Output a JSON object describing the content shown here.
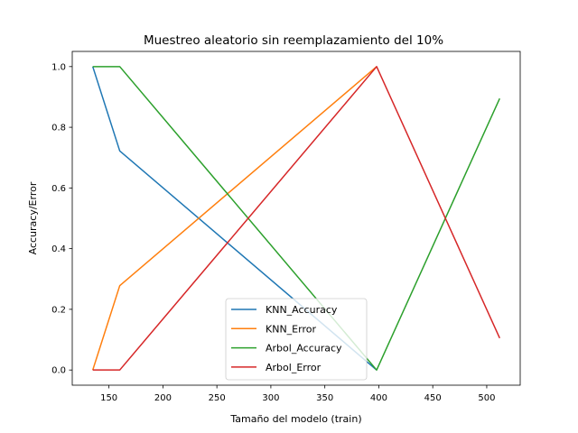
{
  "chart_data": {
    "type": "line",
    "title": "Muestreo aleatorio sin reemplazamiento del 10%",
    "xlabel": "Tamaño del modelo (train)",
    "ylabel": "Accuracy/Error",
    "xlim": [
      116,
      531
    ],
    "ylim": [
      -0.05,
      1.05
    ],
    "xticks": [
      150,
      200,
      250,
      300,
      350,
      400,
      450,
      500
    ],
    "yticks": [
      0.0,
      0.2,
      0.4,
      0.6,
      0.8,
      1.0
    ],
    "xtick_labels": [
      "150",
      "200",
      "250",
      "300",
      "350",
      "400",
      "450",
      "500"
    ],
    "ytick_labels": [
      "0.0",
      "0.2",
      "0.4",
      "0.6",
      "0.8",
      "1.0"
    ],
    "grid": false,
    "legend_position": "lower-center",
    "series": [
      {
        "name": "KNN_Accuracy",
        "color": "#1f77b4",
        "x": [
          135,
          160,
          398,
          398
        ],
        "y": [
          1.0,
          0.722,
          0.0,
          0.0
        ]
      },
      {
        "name": "KNN_Error",
        "color": "#ff7f0e",
        "x": [
          135,
          160,
          398,
          398
        ],
        "y": [
          0.0,
          0.278,
          1.0,
          1.0
        ]
      },
      {
        "name": "Arbol_Accuracy",
        "color": "#2ca02c",
        "x": [
          135,
          160,
          398,
          512
        ],
        "y": [
          1.0,
          1.0,
          0.0,
          0.895
        ]
      },
      {
        "name": "Arbol_Error",
        "color": "#d62728",
        "x": [
          135,
          160,
          398,
          512
        ],
        "y": [
          0.0,
          0.0,
          1.0,
          0.105
        ]
      }
    ]
  }
}
